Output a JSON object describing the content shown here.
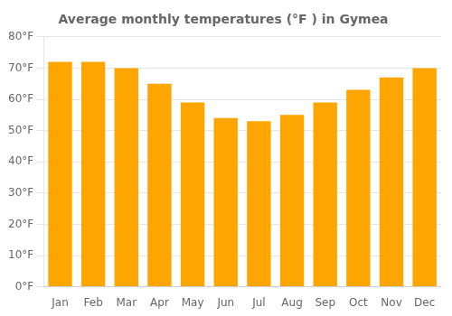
{
  "chart_data": {
    "type": "bar",
    "title": "Average monthly temperatures (°F ) in Gymea",
    "categories": [
      "Jan",
      "Feb",
      "Mar",
      "Apr",
      "May",
      "Jun",
      "Jul",
      "Aug",
      "Sep",
      "Oct",
      "Nov",
      "Dec"
    ],
    "values": [
      72,
      72,
      70,
      65,
      59,
      54,
      53,
      55,
      59,
      63,
      67,
      70
    ],
    "color": "#FFA500",
    "ylim": [
      0,
      80
    ],
    "yticks": [
      {
        "value": 0,
        "label": "0°F"
      },
      {
        "value": 10,
        "label": "10°F"
      },
      {
        "value": 20,
        "label": "20°F"
      },
      {
        "value": 30,
        "label": "30°F"
      },
      {
        "value": 40,
        "label": "40°F"
      },
      {
        "value": 50,
        "label": "50°F"
      },
      {
        "value": 60,
        "label": "60°F"
      },
      {
        "value": 70,
        "label": "70°F"
      },
      {
        "value": 80,
        "label": "80°F"
      }
    ],
    "grid": true
  }
}
